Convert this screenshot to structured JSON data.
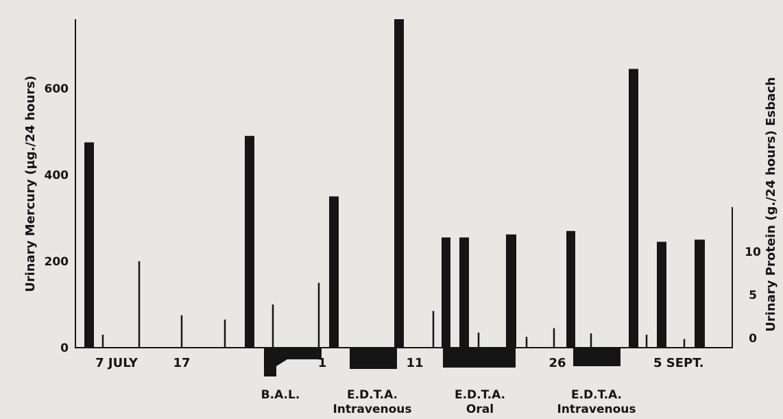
{
  "chart_data": {
    "type": "bar",
    "title": "",
    "x_tick_labels": [
      "7 JULY",
      "17",
      "1",
      "11",
      "26",
      "5 SEPT."
    ],
    "y_left": {
      "label": "Urinary Mercury (µg./24 hours)",
      "ticks": [
        "0",
        "200",
        "400",
        "600"
      ],
      "range": [
        0,
        760
      ]
    },
    "y_right": {
      "label": "Urinary Protein (g./24 hours) Esbach",
      "ticks": [
        "0",
        "5",
        "10"
      ],
      "range": [
        0,
        10
      ]
    },
    "treatments": [
      {
        "lines": [
          "B.A.L."
        ]
      },
      {
        "lines": [
          "E.D.T.A.",
          "Intravenous"
        ]
      },
      {
        "lines": [
          "E.D.T.A.",
          "Oral"
        ]
      },
      {
        "lines": [
          "E.D.T.A.",
          "Intravenous"
        ]
      }
    ],
    "series": [
      {
        "series_type": "wide bars",
        "values": [
          475,
          490,
          350,
          760,
          255,
          255,
          262,
          270,
          645,
          245,
          250
        ]
      },
      {
        "series_type": "thin lines",
        "values": [
          30,
          200,
          75,
          65,
          100,
          150,
          85,
          35,
          25,
          45,
          33,
          30,
          20
        ]
      }
    ]
  }
}
